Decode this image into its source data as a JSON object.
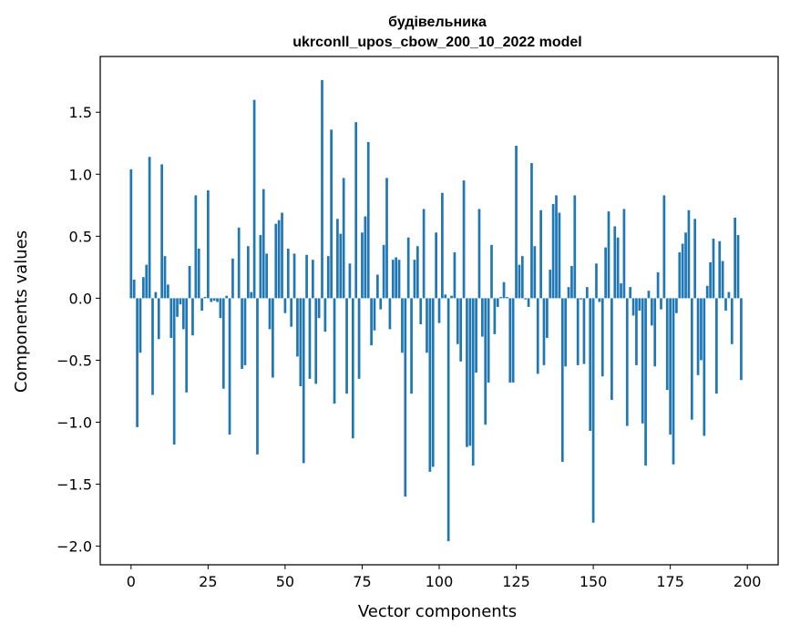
{
  "chart_data": {
    "type": "bar",
    "title": "будівельника",
    "subtitle": "ukrconll_upos_cbow_200_10_2022 model",
    "xlabel": "Vector components",
    "ylabel": "Components values",
    "xlim": [
      -10,
      210
    ],
    "ylim": [
      -2.15,
      1.95
    ],
    "xticks": [
      0,
      25,
      50,
      75,
      100,
      125,
      150,
      175,
      200
    ],
    "yticks": [
      -2.0,
      -1.5,
      -1.0,
      -0.5,
      0.0,
      0.5,
      1.0,
      1.5
    ],
    "ytick_labels": [
      "−2.0",
      "−1.5",
      "−1.0",
      "−0.5",
      "0.0",
      "0.5",
      "1.0",
      "1.5"
    ],
    "bar_color": "#1f77b4",
    "grid": false,
    "values": [
      1.04,
      0.15,
      -1.04,
      -0.44,
      0.17,
      0.27,
      1.14,
      -0.78,
      0.05,
      -0.33,
      1.08,
      0.34,
      0.11,
      -0.32,
      -1.18,
      -0.15,
      -0.05,
      -0.25,
      -0.76,
      0.26,
      -0.3,
      0.83,
      0.4,
      -0.1,
      0.01,
      0.87,
      -0.03,
      -0.02,
      -0.03,
      -0.16,
      -0.73,
      0.02,
      -1.1,
      0.32,
      0.0,
      0.57,
      -0.57,
      -0.54,
      0.42,
      0.05,
      1.6,
      -1.26,
      0.51,
      0.88,
      0.36,
      -0.25,
      -0.64,
      0.6,
      0.63,
      0.69,
      -0.12,
      0.4,
      -0.23,
      0.36,
      -0.47,
      -0.71,
      -1.33,
      0.35,
      -0.65,
      0.31,
      -0.69,
      -0.16,
      1.76,
      -0.27,
      0.34,
      1.36,
      -0.85,
      0.64,
      0.52,
      0.97,
      -0.77,
      0.28,
      -1.13,
      1.42,
      -0.65,
      0.53,
      0.66,
      1.26,
      -0.38,
      -0.26,
      0.19,
      -0.09,
      0.43,
      0.97,
      -0.25,
      0.31,
      0.33,
      0.31,
      -0.44,
      -1.6,
      0.49,
      -0.77,
      0.31,
      0.42,
      -0.21,
      0.72,
      -0.44,
      -1.4,
      -1.36,
      0.53,
      -0.2,
      0.85,
      0.03,
      -1.96,
      0.02,
      0.37,
      -0.37,
      -0.51,
      0.95,
      -1.2,
      -1.19,
      -1.35,
      -0.6,
      0.72,
      -0.31,
      -1.02,
      -0.68,
      0.43,
      -0.29,
      -0.07,
      0.01,
      0.13,
      0.01,
      -0.68,
      -0.68,
      1.23,
      0.27,
      0.34,
      -0.01,
      -0.07,
      1.09,
      0.42,
      -0.61,
      0.71,
      -0.54,
      -0.32,
      0.23,
      0.76,
      0.83,
      0.69,
      -1.32,
      -0.55,
      0.09,
      0.26,
      0.83,
      -0.54,
      -0.01,
      -0.53,
      0.09,
      -1.07,
      -1.81,
      0.28,
      -0.03,
      -0.63,
      0.41,
      0.7,
      -0.82,
      0.58,
      0.49,
      0.12,
      0.72,
      -1.03,
      0.09,
      -0.14,
      -0.54,
      -0.1,
      -1.01,
      -1.35,
      0.06,
      -0.22,
      -0.55,
      0.21,
      -0.09,
      0.83,
      -0.74,
      -1.1,
      -1.34,
      -0.12,
      0.37,
      0.44,
      0.53,
      0.71,
      -0.98,
      0.64,
      -0.62,
      -0.5,
      -1.11,
      0.1,
      0.29,
      0.48,
      -0.77,
      0.46,
      0.3,
      -0.1,
      0.05,
      -0.37,
      0.65,
      0.51,
      -0.66
    ]
  }
}
